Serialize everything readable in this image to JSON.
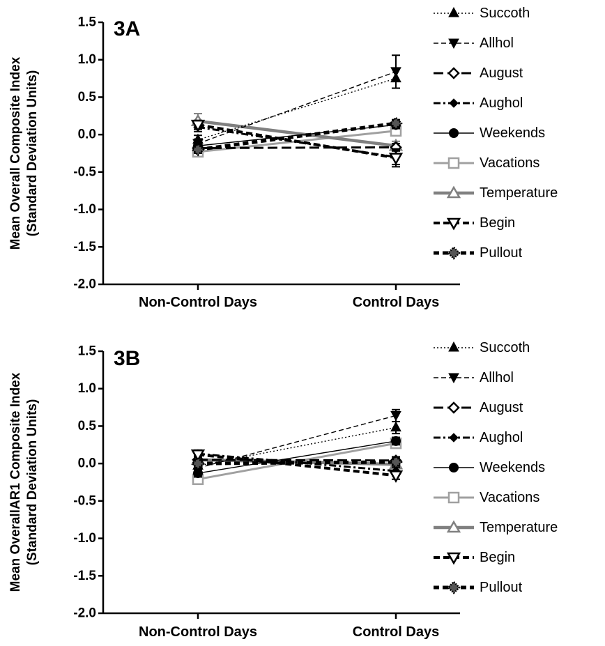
{
  "chart_data": [
    {
      "type": "line",
      "panel_label": "3A",
      "ylabel": [
        "Mean Overall Composite Index",
        "(Standard Deviation Units)"
      ],
      "xlabel": "",
      "categories": [
        "Non-Control Days",
        "Control Days"
      ],
      "ylim": [
        -2.0,
        1.5
      ],
      "yticks": [
        "1.5",
        "1.0",
        "0.5",
        "0.0",
        "-0.5",
        "-1.0",
        "-1.5",
        "-2.0"
      ],
      "ytick_values": [
        1.5,
        1.0,
        0.5,
        0.0,
        -0.5,
        -1.0,
        -1.5,
        -2.0
      ],
      "grid": false,
      "legend_position": "right",
      "series": [
        {
          "name": "Succoth",
          "values": [
            -0.07,
            0.75
          ],
          "err": [
            0.06,
            0.13
          ]
        },
        {
          "name": "Allhol",
          "values": [
            -0.12,
            0.84
          ],
          "err": [
            0.06,
            0.22
          ]
        },
        {
          "name": "August",
          "values": [
            -0.18,
            -0.17
          ],
          "err": [
            0.05,
            0.05
          ]
        },
        {
          "name": "Aughol",
          "values": [
            0.1,
            -0.3
          ],
          "err": [
            0.06,
            0.1
          ]
        },
        {
          "name": "Weekends",
          "values": [
            -0.15,
            0.13
          ],
          "err": [
            0.05,
            0.05
          ]
        },
        {
          "name": "Vacations",
          "values": [
            -0.23,
            0.05
          ],
          "err": [
            0.05,
            0.05
          ]
        },
        {
          "name": "Temperature",
          "values": [
            0.18,
            -0.15
          ],
          "err": [
            0.1,
            0.06
          ]
        },
        {
          "name": "Begin",
          "values": [
            0.13,
            -0.31
          ],
          "err": [
            0.06,
            0.12
          ]
        },
        {
          "name": "Pullout",
          "values": [
            -0.2,
            0.15
          ],
          "err": [
            0.05,
            0.05
          ]
        }
      ]
    },
    {
      "type": "line",
      "panel_label": "3B",
      "ylabel": [
        "Mean OverallAR1 Composite Index",
        "(Standard Deviation Units)"
      ],
      "xlabel": "",
      "categories": [
        "Non-Control Days",
        "Control Days"
      ],
      "ylim": [
        -2.0,
        1.5
      ],
      "yticks": [
        "1.5",
        "1.0",
        "0.5",
        "0.0",
        "-0.5",
        "-1.0",
        "-1.5",
        "-2.0"
      ],
      "ytick_values": [
        1.5,
        1.0,
        0.5,
        0.0,
        -0.5,
        -1.0,
        -1.5,
        -2.0
      ],
      "grid": false,
      "legend_position": "right",
      "series": [
        {
          "name": "Succoth",
          "values": [
            -0.03,
            0.48
          ],
          "err": [
            0.05,
            0.08
          ]
        },
        {
          "name": "Allhol",
          "values": [
            -0.06,
            0.64
          ],
          "err": [
            0.05,
            0.08
          ]
        },
        {
          "name": "August",
          "values": [
            0.05,
            0.04
          ],
          "err": [
            0.05,
            0.05
          ]
        },
        {
          "name": "Aughol",
          "values": [
            0.13,
            -0.1
          ],
          "err": [
            0.05,
            0.05
          ]
        },
        {
          "name": "Weekends",
          "values": [
            -0.13,
            0.3
          ],
          "err": [
            0.05,
            0.05
          ]
        },
        {
          "name": "Vacations",
          "values": [
            -0.21,
            0.27
          ],
          "err": [
            0.05,
            0.05
          ]
        },
        {
          "name": "Temperature",
          "values": [
            0.05,
            -0.01
          ],
          "err": [
            0.05,
            0.05
          ]
        },
        {
          "name": "Begin",
          "values": [
            0.12,
            -0.16
          ],
          "err": [
            0.05,
            0.05
          ]
        },
        {
          "name": "Pullout",
          "values": [
            0.0,
            0.02
          ],
          "err": [
            0.05,
            0.05
          ]
        }
      ]
    }
  ],
  "series_styles": {
    "Succoth": {
      "color": "#000000",
      "dash": "dotted",
      "marker": "triangle-up-filled"
    },
    "Allhol": {
      "color": "#000000",
      "dash": "dashed",
      "marker": "triangle-down-filled"
    },
    "August": {
      "color": "#000000",
      "dash": "long-dash",
      "marker": "diamond-open"
    },
    "Aughol": {
      "color": "#000000",
      "dash": "dash-dot",
      "marker": "diamond-filled-small"
    },
    "Weekends": {
      "color": "#000000",
      "dash": "solid-thin",
      "marker": "circle-filled"
    },
    "Vacations": {
      "color": "#a0a0a0",
      "dash": "solid",
      "marker": "square-open"
    },
    "Temperature": {
      "color": "#808080",
      "dash": "solid-thick",
      "marker": "triangle-up-open"
    },
    "Begin": {
      "color": "#000000",
      "dash": "thick-dash",
      "marker": "triangle-down-open"
    },
    "Pullout": {
      "color": "#000000",
      "dash": "thick-dash-heavy",
      "marker": "diamond-dotted"
    }
  }
}
